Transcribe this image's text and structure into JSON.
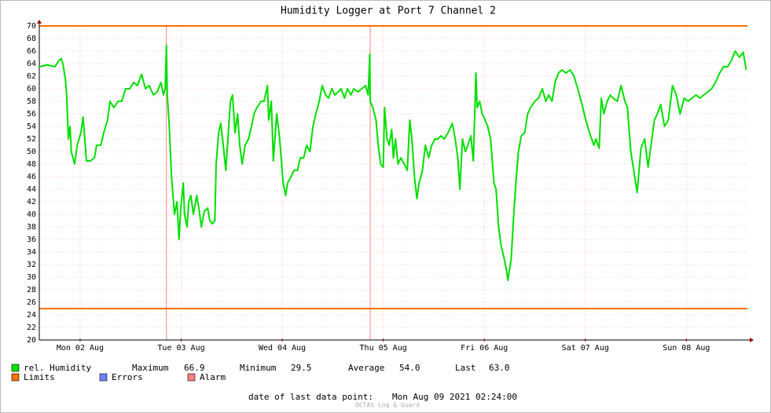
{
  "chart_data": {
    "type": "line",
    "title": "Humidity Logger at Port 7 Channel 2",
    "x": [
      2.3,
      4.2,
      6.0,
      7.0,
      7.5,
      7.9,
      8.5,
      8.8,
      9.2,
      9.6,
      9.9,
      10.7,
      11.3,
      12.2,
      12.7,
      13.1,
      13.5,
      14.4,
      15.4,
      15.9,
      16.9,
      17.6,
      18.5,
      19.1,
      20.0,
      21.0,
      21.9,
      22.8,
      23.8,
      24.7,
      25.6,
      26.6,
      27.5,
      28.4,
      29.4,
      30.3,
      31.2,
      31.8,
      32.2,
      32.5,
      32.7,
      33.1,
      33.7,
      34.4,
      35.0,
      35.5,
      35.9,
      36.5,
      36.8,
      37.4,
      37.8,
      38.3,
      38.9,
      39.7,
      40.2,
      40.8,
      41.5,
      42.3,
      42.8,
      43.4,
      44.0,
      44.3,
      44.9,
      45.4,
      46.0,
      46.6,
      47.1,
      47.7,
      48.2,
      48.8,
      49.4,
      49.9,
      50.5,
      51.2,
      52.0,
      52.7,
      53.3,
      54.0,
      55.0,
      55.7,
      56.5,
      56.8,
      57.4,
      57.9,
      58.7,
      59.4,
      60.2,
      60.8,
      61.3,
      62.1,
      62.8,
      63.6,
      64.3,
      65.1,
      65.8,
      66.6,
      67.3,
      68.0,
      68.8,
      69.5,
      70.3,
      71.0,
      71.8,
      72.5,
      73.3,
      74.0,
      74.8,
      75.5,
      76.3,
      77.0,
      78.0,
      78.9,
      79.8,
      80.4,
      80.8,
      80.9,
      81.5,
      82.3,
      82.8,
      83.4,
      84.0,
      84.3,
      84.9,
      85.4,
      86.0,
      86.4,
      86.9,
      87.5,
      88.2,
      89.0,
      89.7,
      90.3,
      90.8,
      91.4,
      92.0,
      92.5,
      93.3,
      94.0,
      94.8,
      95.5,
      96.3,
      97.0,
      97.7,
      98.5,
      99.4,
      100.4,
      101.1,
      101.7,
      102.2,
      102.8,
      103.5,
      104.1,
      104.8,
      105.4,
      106.0,
      106.3,
      106.9,
      107.5,
      108.2,
      108.8,
      109.5,
      110.3,
      110.8,
      111.4,
      112.0,
      112.7,
      113.3,
      113.6,
      114.4,
      114.9,
      115.5,
      116.1,
      116.8,
      117.6,
      118.3,
      119.0,
      120.0,
      120.9,
      121.8,
      122.6,
      123.3,
      124.1,
      124.8,
      125.6,
      126.5,
      127.4,
      128.4,
      129.3,
      130.2,
      131.2,
      132.1,
      133.0,
      134.0,
      134.5,
      135.3,
      135.8,
      136.4,
      137.2,
      137.9,
      138.6,
      139.6,
      140.5,
      141.4,
      142.0,
      142.8,
      143.5,
      144.3,
      145.2,
      146.1,
      146.9,
      147.6,
      148.4,
      149.1,
      149.9,
      150.8,
      151.7,
      152.7,
      153.6,
      154.5,
      155.5,
      156.4,
      157.3,
      158.3,
      159.2,
      160.1,
      161.1,
      162.0,
      162.9,
      163.9,
      164.8,
      165.8,
      166.7,
      167.6,
      168.6,
      169.5,
      170.2
    ],
    "series": [
      {
        "name": "rel. Humidity",
        "color": "#00e000",
        "values": [
          63.5,
          63.8,
          63.5,
          64.5,
          64.8,
          64,
          61.5,
          59,
          52,
          54,
          50,
          48,
          51,
          53,
          55.5,
          52,
          48.5,
          48.5,
          49,
          51,
          51,
          53,
          55,
          58,
          57,
          58,
          58,
          60,
          60,
          61,
          60.5,
          62.3,
          60,
          60.5,
          59,
          59.5,
          61,
          59,
          60,
          66.9,
          59,
          55,
          46,
          40,
          42,
          36,
          41,
          45,
          40,
          38,
          42,
          43,
          40,
          43,
          41,
          38,
          40.5,
          41,
          39,
          38.5,
          39,
          48,
          53,
          54.5,
          51,
          47,
          52,
          58,
          59,
          53,
          56,
          51,
          48,
          51,
          52,
          54,
          56,
          57,
          58,
          58,
          60.5,
          55,
          58,
          48.5,
          56,
          52,
          45,
          43,
          45,
          46,
          47,
          47,
          49,
          49,
          51,
          50,
          54,
          56,
          58,
          60.5,
          59,
          58.5,
          60,
          59,
          59.5,
          60,
          58.5,
          60,
          59,
          60,
          59.5,
          60,
          60.5,
          59,
          65.5,
          58,
          57,
          55,
          51,
          48,
          47.5,
          57,
          52,
          51,
          53.5,
          49,
          52,
          48,
          49,
          48,
          47,
          55,
          52,
          46,
          42.5,
          45,
          47,
          51,
          49,
          51,
          52,
          52,
          52.5,
          52,
          53,
          54.5,
          52,
          49,
          44,
          52,
          50,
          51,
          52.5,
          48.5,
          62.5,
          57,
          58,
          56,
          55,
          54,
          52,
          45,
          44,
          38,
          35,
          33,
          31,
          29.5,
          33,
          39,
          45,
          50,
          52.5,
          53,
          56,
          57,
          58,
          58.5,
          60,
          58,
          59,
          58,
          61,
          62.5,
          63,
          62.5,
          63,
          62,
          60,
          57.5,
          55,
          53,
          51,
          52,
          50.5,
          58.5,
          56,
          58,
          59,
          58.5,
          58,
          60.5,
          58,
          57,
          50,
          47,
          43.5,
          50.5,
          52,
          47.5,
          51,
          55,
          56,
          57.5,
          54,
          55,
          60.5,
          59,
          56,
          58.5,
          58,
          58.5,
          59,
          58.5,
          59,
          59.5,
          60,
          61,
          62.5,
          63.5,
          63.5,
          64.5,
          66,
          65,
          65.8,
          63
        ]
      }
    ],
    "xlim": [
      2.3,
      170.5
    ],
    "xticks": [
      {
        "value": 12,
        "label": "Mon 02 Aug"
      },
      {
        "value": 36,
        "label": "Tue 03 Aug"
      },
      {
        "value": 60,
        "label": "Wed 04 Aug"
      },
      {
        "value": 84,
        "label": "Thu 05 Aug"
      },
      {
        "value": 108,
        "label": "Fri 06 Aug"
      },
      {
        "value": 132,
        "label": "Sat 07 Aug"
      },
      {
        "value": 156,
        "label": "Sun 08 Aug"
      }
    ],
    "ylim": [
      20,
      70
    ],
    "yticks": [
      20,
      22,
      24,
      26,
      28,
      30,
      32,
      34,
      36,
      38,
      40,
      42,
      44,
      46,
      48,
      50,
      52,
      54,
      56,
      58,
      60,
      62,
      64,
      66,
      68,
      70
    ],
    "grid": true,
    "limits": {
      "name": "Limits",
      "color": "#ff7000",
      "values": [
        25,
        70
      ]
    },
    "alarm_x": [
      32.5,
      80.9
    ],
    "legend_extra": [
      {
        "name": "Errors",
        "color": "#7080ff"
      },
      {
        "name": "Alarm",
        "color": "#ff8080"
      }
    ],
    "stats": [
      {
        "name": "Maximum",
        "value": "66.9"
      },
      {
        "name": "Minimum",
        "value": "29.5"
      },
      {
        "name": "Average",
        "value": "54.0"
      },
      {
        "name": "Last",
        "value": "63.0"
      }
    ],
    "footer": {
      "label": "date of last data point:",
      "value": "Mon Aug 09 2021 02:24:00",
      "brand": "OCTAS Log & Guard"
    }
  }
}
